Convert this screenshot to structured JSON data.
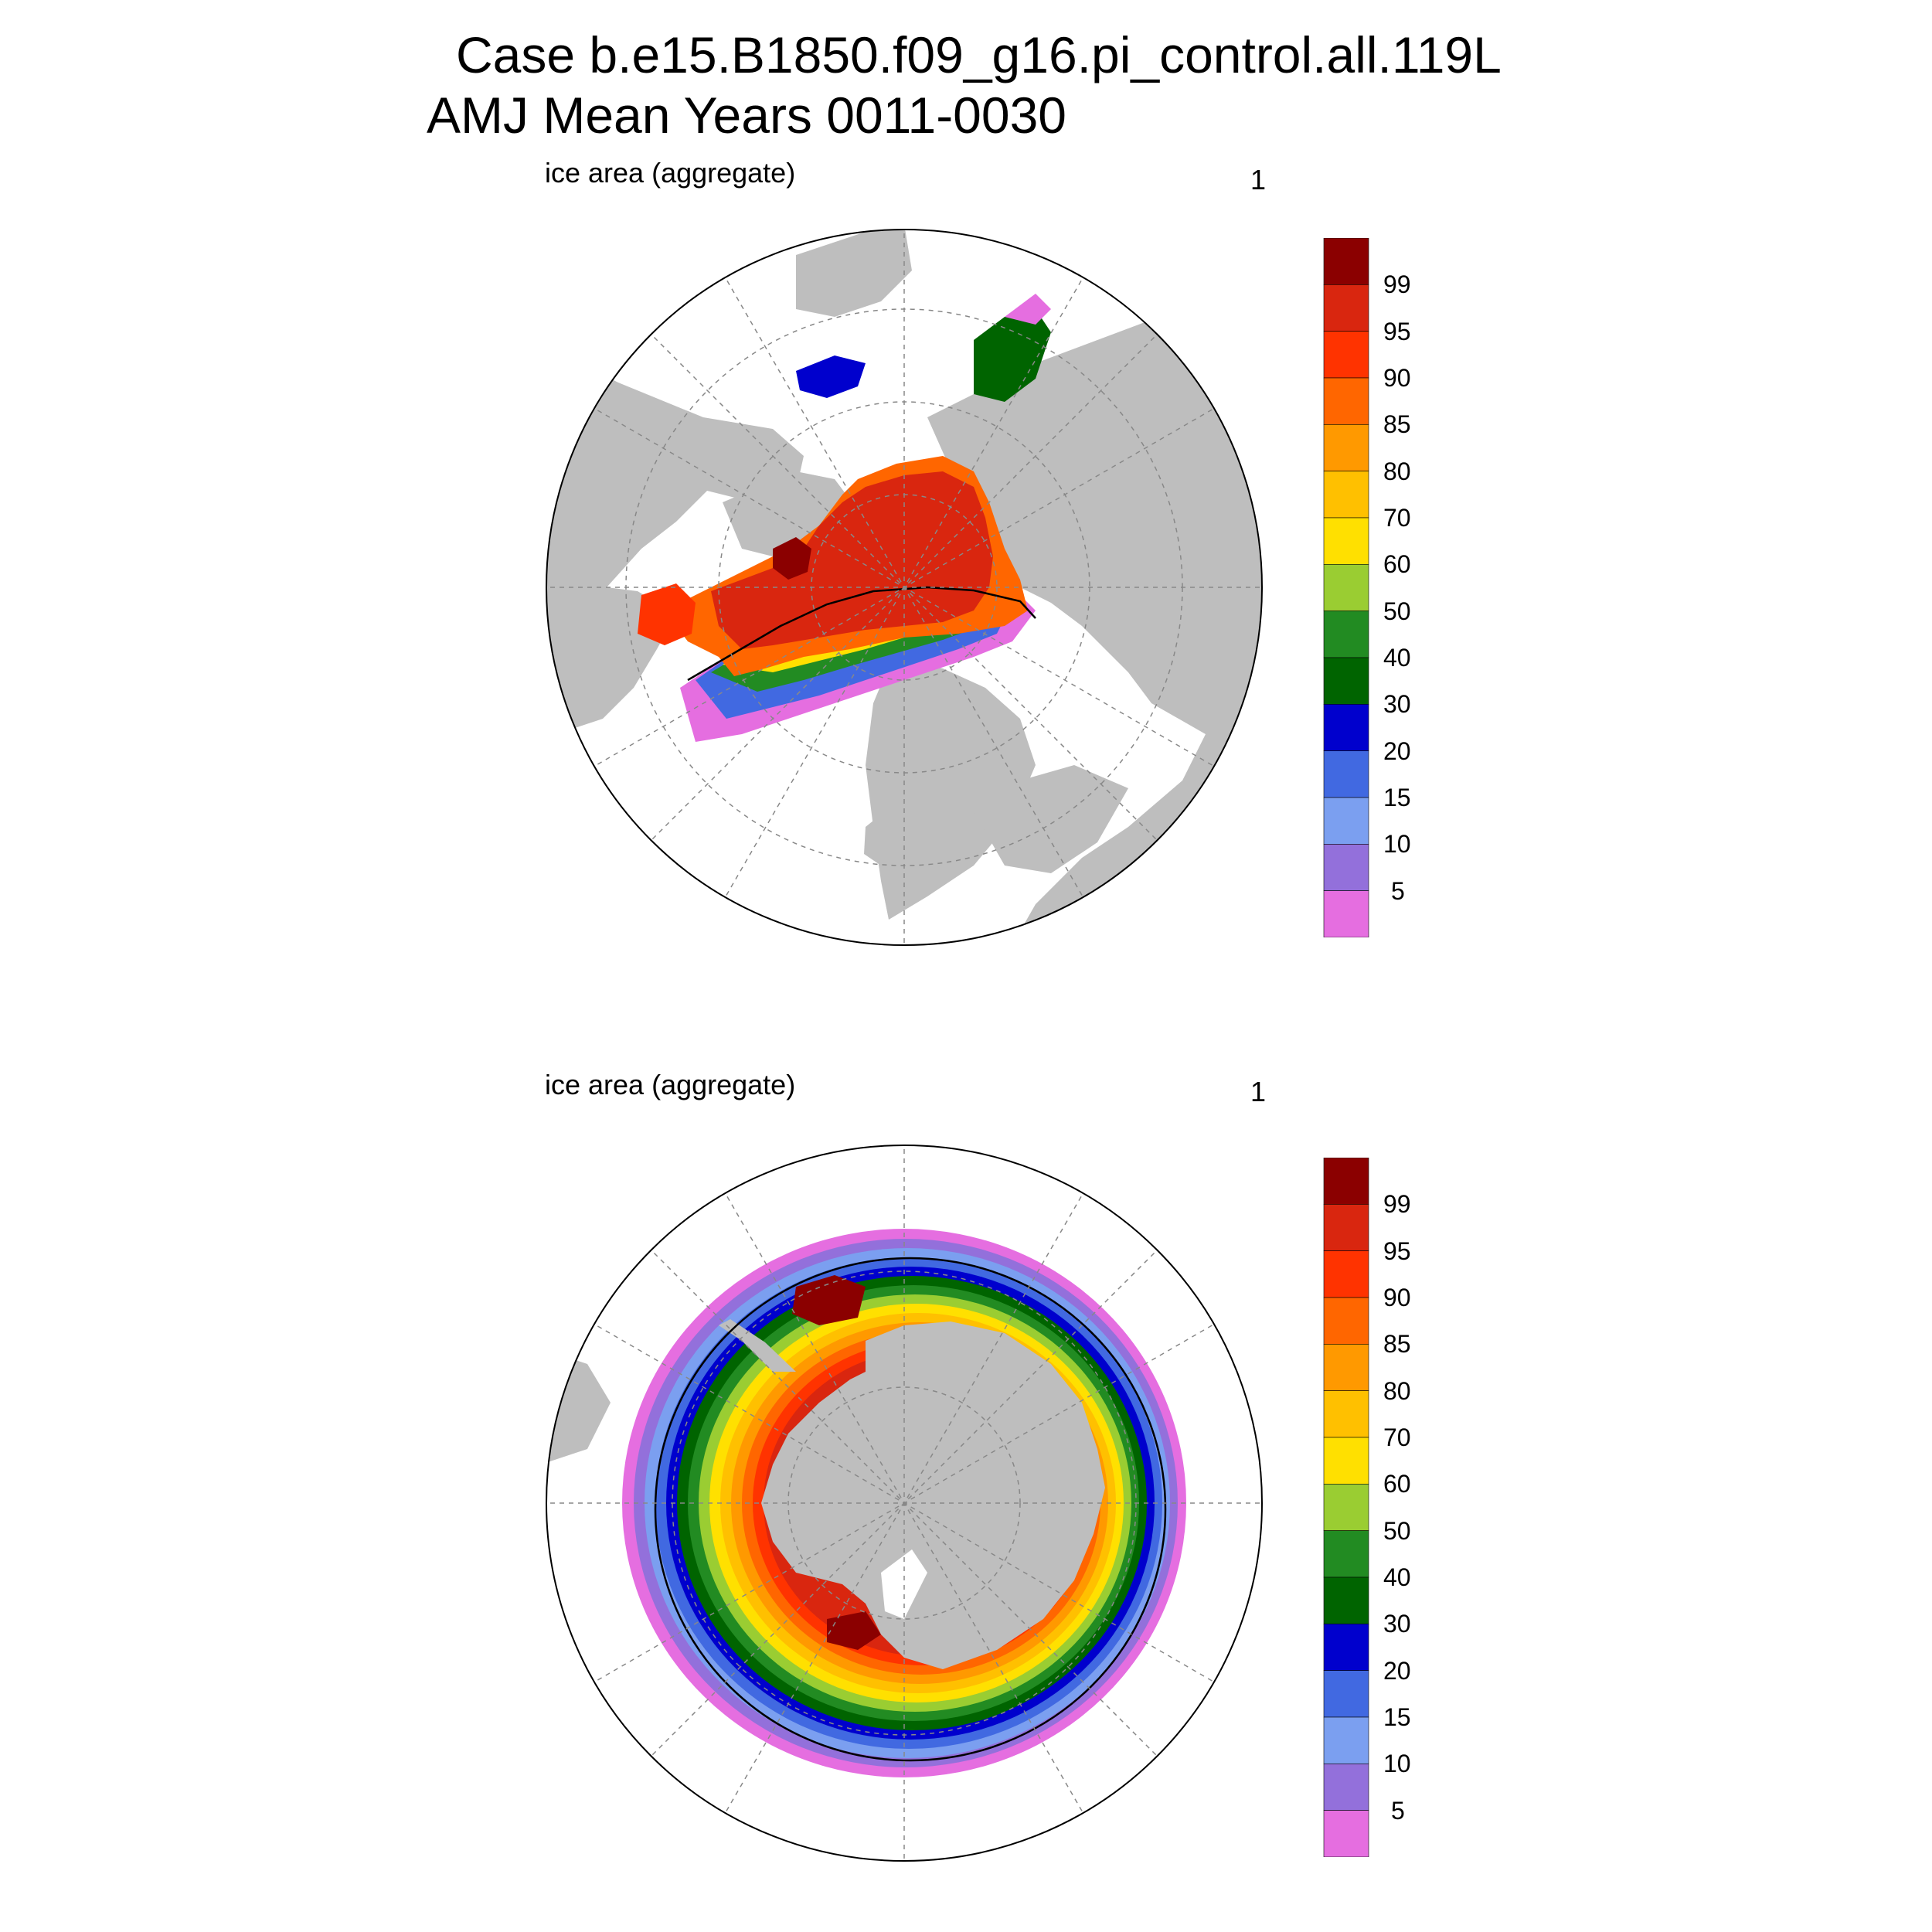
{
  "header": {
    "title_line1": "Case b.e15.B1850.f09_g16.pi_control.all.119L",
    "title_line2": "AMJ Mean   Years 0011-0030"
  },
  "panels": [
    {
      "id": "north",
      "label": "ice area  (aggregate)",
      "number": "1",
      "hemisphere": "Northern Hemisphere polar stereographic"
    },
    {
      "id": "south",
      "label": "ice area  (aggregate)",
      "number": "1",
      "hemisphere": "Southern Hemisphere polar stereographic"
    }
  ],
  "colorbar": {
    "tick_labels": [
      "99",
      "95",
      "90",
      "85",
      "80",
      "70",
      "60",
      "50",
      "40",
      "30",
      "20",
      "15",
      "10",
      "5"
    ],
    "colors_top_to_bottom": [
      "#8b0000",
      "#d9260f",
      "#ff3300",
      "#ff6600",
      "#ff9900",
      "#ffc000",
      "#ffe000",
      "#9acd32",
      "#228b22",
      "#006400",
      "#0000cd",
      "#4169e1",
      "#7b9ff0",
      "#9370db",
      "#e56ee0"
    ]
  },
  "colors": {
    "land": "#bebebe",
    "ocean": "#ffffff",
    "contour": "#000000",
    "grid": "#888888"
  }
}
